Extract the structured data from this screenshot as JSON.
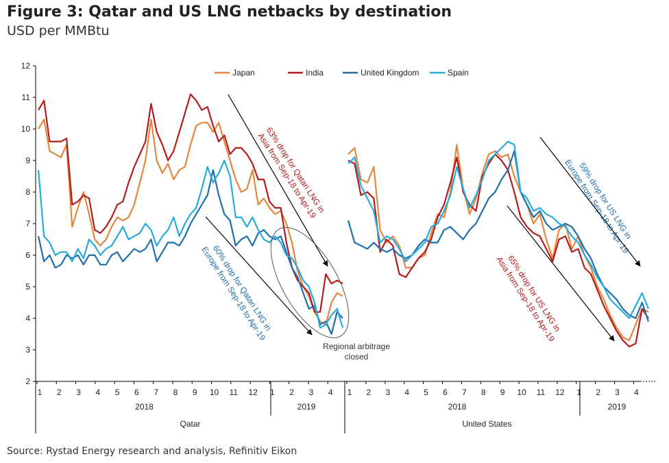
{
  "header": {
    "title": "Figure 3: Qatar and US LNG netbacks by destination",
    "subtitle": "USD per MMBtu"
  },
  "footer": {
    "source": "Source: Rystad Energy research and analysis, Refinitiv Eikon"
  },
  "colors": {
    "Japan": "#e5853b",
    "India": "#b31b1b",
    "United Kingdom": "#1f6eab",
    "Spain": "#26a9df"
  },
  "chart_data": {
    "type": "line",
    "title": "Figure 3: Qatar and US LNG netbacks by destination",
    "ylabel": "USD per MMBtu",
    "ylim": [
      2,
      12
    ],
    "yticks": [
      2,
      3,
      4,
      5,
      6,
      7,
      8,
      9,
      10,
      11,
      12
    ],
    "legend_position": "top",
    "grid": false,
    "panels": [
      {
        "group": "Qatar",
        "years": [
          {
            "label": "2018",
            "months": 12
          },
          {
            "label": "2019",
            "months": 4
          }
        ],
        "month_labels": [
          "1",
          "2",
          "3",
          "4",
          "5",
          "6",
          "7",
          "8",
          "9",
          "10",
          "11",
          "12",
          "1",
          "2",
          "3",
          "4"
        ],
        "series": [
          {
            "name": "Japan",
            "values": [
              10.0,
              10.3,
              9.3,
              9.2,
              9.1,
              9.5,
              6.9,
              7.5,
              8.0,
              7.3,
              6.5,
              6.3,
              6.5,
              6.9,
              7.2,
              7.1,
              7.2,
              7.6,
              8.3,
              9.0,
              10.3,
              9.0,
              8.6,
              8.9,
              8.4,
              8.7,
              8.8,
              9.5,
              10.1,
              10.2,
              10.2,
              9.9,
              10.2,
              9.6,
              9.0,
              8.4,
              8.0,
              8.1,
              8.7,
              7.6,
              7.8,
              7.5,
              7.3,
              7.4,
              7.0,
              6.4,
              5.5,
              5.0,
              4.7,
              4.2,
              3.9,
              3.8,
              4.5,
              4.8,
              4.7
            ]
          },
          {
            "name": "India",
            "values": [
              10.6,
              10.9,
              9.6,
              9.6,
              9.6,
              9.7,
              7.6,
              7.7,
              7.9,
              7.8,
              6.8,
              6.7,
              6.9,
              7.2,
              7.6,
              7.7,
              8.3,
              8.8,
              9.2,
              9.6,
              10.8,
              9.9,
              9.5,
              9.0,
              9.3,
              9.9,
              10.5,
              11.1,
              10.9,
              10.6,
              10.7,
              10.1,
              9.6,
              9.8,
              9.2,
              9.4,
              9.4,
              9.2,
              8.9,
              8.4,
              8.4,
              7.7,
              7.5,
              7.5,
              6.4,
              5.6,
              5.2,
              5.0,
              4.8,
              4.2,
              4.2,
              5.4,
              5.1,
              5.2,
              5.1
            ]
          },
          {
            "name": "United Kingdom",
            "values": [
              6.6,
              5.8,
              6.0,
              5.6,
              5.7,
              6.0,
              5.9,
              6.0,
              5.7,
              6.0,
              6.0,
              5.7,
              5.7,
              6.0,
              6.1,
              5.8,
              6.0,
              6.2,
              6.1,
              6.2,
              6.5,
              5.8,
              6.1,
              6.4,
              6.4,
              6.3,
              6.6,
              7.0,
              7.3,
              7.6,
              7.9,
              8.7,
              7.9,
              7.3,
              7.1,
              6.3,
              6.5,
              6.6,
              6.3,
              6.7,
              6.8,
              6.6,
              6.5,
              6.6,
              6.1,
              5.6,
              5.3,
              4.8,
              4.3,
              4.4,
              3.8,
              3.9,
              3.5,
              4.2,
              4.0
            ]
          },
          {
            "name": "Spain",
            "values": [
              8.7,
              6.6,
              6.4,
              6.0,
              6.1,
              6.1,
              5.8,
              6.2,
              5.9,
              6.5,
              6.3,
              6.0,
              6.2,
              6.3,
              6.6,
              6.9,
              6.5,
              6.6,
              6.7,
              7.0,
              6.8,
              6.3,
              6.6,
              6.8,
              7.2,
              6.6,
              7.0,
              7.3,
              7.5,
              8.1,
              8.8,
              8.3,
              8.6,
              9.0,
              8.5,
              7.2,
              7.2,
              6.9,
              7.2,
              6.8,
              6.5,
              6.4,
              6.6,
              6.4,
              6.0,
              5.9,
              5.6,
              5.2,
              5.0,
              4.5,
              3.7,
              3.8,
              4.1,
              4.3,
              3.7
            ]
          }
        ]
      },
      {
        "group": "United States",
        "years": [
          {
            "label": "2018",
            "months": 12
          },
          {
            "label": "2019",
            "months": 4
          }
        ],
        "month_labels": [
          "1",
          "2",
          "3",
          "4",
          "5",
          "6",
          "7",
          "8",
          "9",
          "10",
          "11",
          "12",
          "1",
          "2",
          "3",
          "4"
        ],
        "series": [
          {
            "name": "Japan",
            "values": [
              9.2,
              9.4,
              8.4,
              8.3,
              8.8,
              6.8,
              6.4,
              6.6,
              6.3,
              5.6,
              5.6,
              5.9,
              6.0,
              6.7,
              7.3,
              7.2,
              8.0,
              9.5,
              8.1,
              7.3,
              7.8,
              8.6,
              9.2,
              9.3,
              9.1,
              9.2,
              8.5,
              8.0,
              7.6,
              7.0,
              7.3,
              6.5,
              5.9,
              6.8,
              7.0,
              6.2,
              6.6,
              6.0,
              5.6,
              5.0,
              4.6,
              4.1,
              3.7,
              3.4,
              3.3,
              3.8,
              4.3,
              4.2
            ]
          },
          {
            "name": "India",
            "values": [
              9.0,
              8.9,
              7.9,
              8.0,
              7.8,
              6.1,
              6.5,
              6.3,
              5.4,
              5.3,
              5.6,
              5.9,
              6.1,
              6.5,
              7.2,
              7.6,
              8.3,
              9.1,
              8.0,
              7.6,
              7.4,
              8.5,
              8.9,
              9.2,
              9.0,
              8.7,
              8.0,
              7.2,
              6.9,
              6.7,
              6.6,
              6.2,
              5.8,
              6.5,
              6.6,
              6.1,
              6.2,
              5.6,
              5.4,
              4.9,
              4.4,
              4.0,
              3.6,
              3.3,
              3.1,
              3.2,
              4.3,
              4.0
            ]
          },
          {
            "name": "United Kingdom",
            "values": [
              7.1,
              6.4,
              6.3,
              6.2,
              6.4,
              6.2,
              6.1,
              6.2,
              6.0,
              5.9,
              6.0,
              6.3,
              6.5,
              6.4,
              6.4,
              6.8,
              6.9,
              6.7,
              6.5,
              6.8,
              7.0,
              7.4,
              7.8,
              8.0,
              8.4,
              8.7,
              9.3,
              8.0,
              7.6,
              7.2,
              7.4,
              7.0,
              6.8,
              6.9,
              7.0,
              6.9,
              6.6,
              6.2,
              5.9,
              5.4,
              5.0,
              4.8,
              4.6,
              4.3,
              4.1,
              4.0,
              4.5,
              3.9
            ]
          },
          {
            "name": "Spain",
            "values": [
              8.9,
              9.1,
              8.2,
              7.8,
              7.4,
              6.4,
              6.6,
              6.5,
              6.2,
              5.8,
              6.0,
              6.2,
              6.4,
              6.9,
              7.0,
              7.4,
              7.9,
              8.8,
              8.1,
              7.5,
              7.9,
              8.4,
              9.0,
              9.2,
              9.4,
              9.6,
              9.5,
              8.0,
              7.8,
              7.4,
              7.5,
              7.3,
              7.2,
              7.0,
              6.9,
              6.6,
              6.4,
              6.0,
              5.7,
              5.3,
              5.0,
              4.6,
              4.4,
              4.2,
              4.0,
              4.4,
              4.8,
              4.3
            ]
          }
        ]
      }
    ],
    "annotations": [
      {
        "id": "qatar-asia",
        "lines": [
          "63% drop for Qatari LNG in",
          "Asia from Sep-18 to Apr-19"
        ],
        "color": "#b31b1b"
      },
      {
        "id": "qatar-europe",
        "lines": [
          "60% drop for Qatari LNG in",
          "Europe from Sep-18 to Apr-19"
        ],
        "color": "#1f6eab"
      },
      {
        "id": "us-europe",
        "lines": [
          "59% drop for US LNG in",
          "Europe from Sep-18 to Apr-19"
        ],
        "color": "#1f6eab"
      },
      {
        "id": "us-asia",
        "lines": [
          "65% drop for US LNG in",
          "Asia from Sep-18 to Apr-19"
        ],
        "color": "#b31b1b"
      },
      {
        "id": "arbitrage",
        "lines": [
          "Regional arbitrage",
          "closed"
        ],
        "color": "#333333"
      }
    ]
  }
}
